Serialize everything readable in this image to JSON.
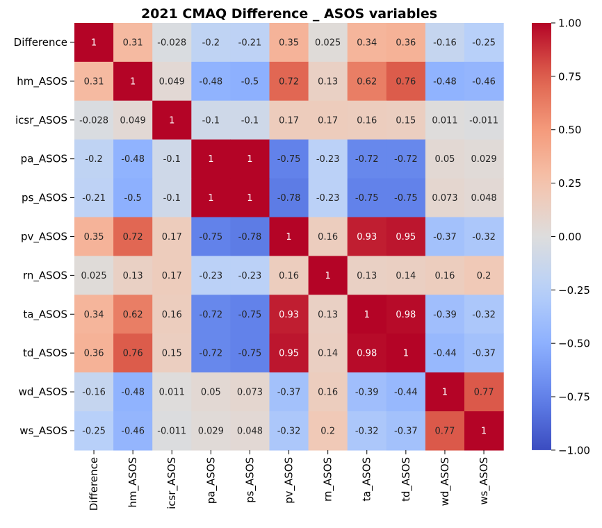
{
  "chart_data": {
    "type": "heatmap",
    "title": "2021 CMAQ Difference _ ASOS variables",
    "variables": [
      "Difference",
      "hm_ASOS",
      "icsr_ASOS",
      "pa_ASOS",
      "ps_ASOS",
      "pv_ASOS",
      "rn_ASOS",
      "ta_ASOS",
      "td_ASOS",
      "wd_ASOS",
      "ws_ASOS"
    ],
    "values": [
      [
        1,
        0.31,
        -0.028,
        -0.2,
        -0.21,
        0.35,
        0.025,
        0.34,
        0.36,
        -0.16,
        -0.25
      ],
      [
        0.31,
        1,
        0.049,
        -0.48,
        -0.5,
        0.72,
        0.13,
        0.62,
        0.76,
        -0.48,
        -0.46
      ],
      [
        -0.028,
        0.049,
        1,
        -0.1,
        -0.1,
        0.17,
        0.17,
        0.16,
        0.15,
        0.011,
        -0.011
      ],
      [
        -0.2,
        -0.48,
        -0.1,
        1,
        1,
        -0.75,
        -0.23,
        -0.72,
        -0.72,
        0.05,
        0.029
      ],
      [
        -0.21,
        -0.5,
        -0.1,
        1,
        1,
        -0.78,
        -0.23,
        -0.75,
        -0.75,
        0.073,
        0.048
      ],
      [
        0.35,
        0.72,
        0.17,
        -0.75,
        -0.78,
        1,
        0.16,
        0.93,
        0.95,
        -0.37,
        -0.32
      ],
      [
        0.025,
        0.13,
        0.17,
        -0.23,
        -0.23,
        0.16,
        1,
        0.13,
        0.14,
        0.16,
        0.2
      ],
      [
        0.34,
        0.62,
        0.16,
        -0.72,
        -0.75,
        0.93,
        0.13,
        1,
        0.98,
        -0.39,
        -0.32
      ],
      [
        0.36,
        0.76,
        0.15,
        -0.72,
        -0.75,
        0.95,
        0.14,
        0.98,
        1,
        -0.44,
        -0.37
      ],
      [
        -0.16,
        -0.48,
        0.011,
        0.05,
        0.073,
        -0.37,
        0.16,
        -0.39,
        -0.44,
        1,
        0.77
      ],
      [
        -0.25,
        -0.46,
        -0.011,
        0.029,
        0.048,
        -0.32,
        0.2,
        -0.32,
        -0.37,
        0.77,
        1
      ]
    ],
    "colorscale": "coolwarm",
    "vmin": -1,
    "vmax": 1,
    "colorbar_ticks": [
      "1.00",
      "0.75",
      "0.50",
      "0.25",
      "0.00",
      "−0.25",
      "−0.50",
      "−0.75",
      "−1.00"
    ],
    "colorbar_tick_values": [
      1,
      0.75,
      0.5,
      0.25,
      0,
      -0.25,
      -0.5,
      -0.75,
      -1
    ],
    "annotations": true,
    "xlabel": "",
    "ylabel": ""
  }
}
